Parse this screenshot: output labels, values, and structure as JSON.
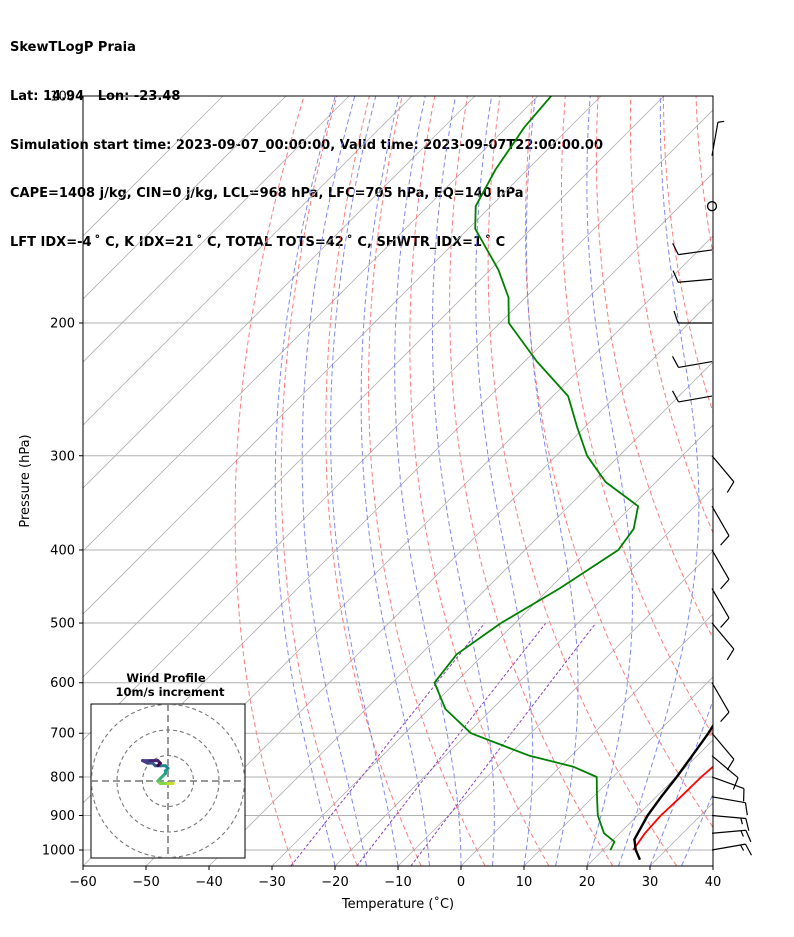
{
  "header": {
    "line1": "SkewTLogP Praia",
    "line2": "Lat: 14.94   Lon: -23.48",
    "line3": "Simulation start time: 2023-09-07_00:00:00, Valid time: 2023-09-07T22:00:00.00",
    "line4": "CAPE=1408 j/kg, CIN=0 j/kg, LCL=968 hPa, LFC=705 hPa, EQ=140 hPa",
    "line5": "LFT IDX=-4 ˚ C, K IDX=21 ˚ C, TOTAL TOTS=42 ˚ C, SHWTR_IDX=1 ˚ C"
  },
  "chart_data": {
    "type": "line",
    "subtype": "skew-t log-p",
    "xlabel": "Temperature (˚C)",
    "ylabel": "Pressure (hPa)",
    "xlim": [
      -60,
      40
    ],
    "ylim": [
      1050,
      100
    ],
    "x_ticks": [
      -60,
      -50,
      -40,
      -30,
      -20,
      -10,
      0,
      10,
      20,
      30,
      40
    ],
    "x_tick_labels": [
      "−60",
      "−50",
      "−40",
      "−30",
      "−20",
      "−10",
      "0",
      "10",
      "20",
      "30",
      "40"
    ],
    "y_ticks": [
      100,
      200,
      300,
      400,
      500,
      600,
      700,
      800,
      900,
      1000
    ],
    "y_scale": "log",
    "grid": true,
    "colors": {
      "temperature": "#ff0000",
      "dewpoint": "#008000",
      "parcel": "#000000",
      "cape_fill": "#f0a0a0",
      "cin_fill": "#9fc4df",
      "dry_adiabat": "#ff6666",
      "moist_adiabat": "#6b74f0",
      "mixing_ratio": "#8b3fbf",
      "isotherm": "#b0b0b0"
    },
    "series": [
      {
        "role": "temperature",
        "points": [
          [
            1000,
            24.8
          ],
          [
            950,
            24.0
          ],
          [
            900,
            23.7
          ],
          [
            850,
            23.9
          ],
          [
            800,
            24.0
          ],
          [
            750,
            24.5
          ],
          [
            700,
            22.0
          ],
          [
            650,
            19.5
          ],
          [
            600,
            16.6
          ],
          [
            550,
            13.5
          ],
          [
            500,
            10.8
          ],
          [
            450,
            7.1
          ],
          [
            400,
            3.6
          ],
          [
            350,
            -0.8
          ],
          [
            325,
            -4.5
          ],
          [
            300,
            -9.3
          ],
          [
            275,
            -14.2
          ],
          [
            250,
            -20.8
          ],
          [
            225,
            -27.3
          ],
          [
            200,
            -34.8
          ],
          [
            175,
            -43.8
          ],
          [
            160,
            -50.8
          ],
          [
            150,
            -56.2
          ],
          [
            140,
            -60.5
          ],
          [
            130,
            -63.4
          ],
          [
            120,
            -68.0
          ],
          [
            110,
            -74.3
          ],
          [
            100,
            -79.9
          ]
        ]
      },
      {
        "role": "dewpoint",
        "points": [
          [
            1000,
            21.2
          ],
          [
            975,
            20.5
          ],
          [
            950,
            17.5
          ],
          [
            900,
            13.7
          ],
          [
            850,
            10.6
          ],
          [
            800,
            7.4
          ],
          [
            775,
            2.0
          ],
          [
            750,
            -6.6
          ],
          [
            700,
            -19.5
          ],
          [
            650,
            -27.4
          ],
          [
            600,
            -33.3
          ],
          [
            550,
            -34.3
          ],
          [
            500,
            -32.2
          ],
          [
            450,
            -28.4
          ],
          [
            400,
            -25.2
          ],
          [
            375,
            -26.1
          ],
          [
            350,
            -29.0
          ],
          [
            325,
            -38.0
          ],
          [
            300,
            -45.1
          ],
          [
            275,
            -51.2
          ],
          [
            250,
            -57.6
          ],
          [
            225,
            -68.0
          ],
          [
            200,
            -78.6
          ],
          [
            185,
            -82.7
          ],
          [
            170,
            -88.7
          ],
          [
            150,
            -98.9
          ],
          [
            140,
            -102.4
          ],
          [
            125,
            -105.1
          ],
          [
            110,
            -107.2
          ],
          [
            100,
            -107.9
          ]
        ]
      },
      {
        "role": "parcel",
        "points": [
          [
            1000,
            25.2
          ],
          [
            968,
            23.3
          ],
          [
            900,
            21.6
          ],
          [
            850,
            20.8
          ],
          [
            800,
            20.1
          ],
          [
            750,
            19.2
          ],
          [
            705,
            18.3
          ],
          [
            650,
            16.8
          ],
          [
            600,
            14.6
          ],
          [
            550,
            11.7
          ],
          [
            500,
            8.2
          ],
          [
            450,
            4.0
          ],
          [
            400,
            -1.1
          ],
          [
            350,
            -7.1
          ],
          [
            300,
            -14.6
          ],
          [
            250,
            -23.4
          ],
          [
            200,
            -33.9
          ],
          [
            175,
            -41.4
          ],
          [
            150,
            -50.5
          ],
          [
            140,
            -55.3
          ],
          [
            120,
            -64.8
          ],
          [
            100,
            -77.0
          ]
        ]
      }
    ],
    "cape_region": {
      "from_hPa": 705,
      "to_hPa": 140
    },
    "wind_barbs": [
      {
        "p": 1000,
        "speed_kt": 15,
        "direction_deg": 80
      },
      {
        "p": 950,
        "speed_kt": 15,
        "direction_deg": 85
      },
      {
        "p": 900,
        "speed_kt": 15,
        "direction_deg": 95
      },
      {
        "p": 850,
        "speed_kt": 10,
        "direction_deg": 100
      },
      {
        "p": 800,
        "speed_kt": 10,
        "direction_deg": 110
      },
      {
        "p": 750,
        "speed_kt": 10,
        "direction_deg": 130
      },
      {
        "p": 700,
        "speed_kt": 10,
        "direction_deg": 140
      },
      {
        "p": 600,
        "speed_kt": 10,
        "direction_deg": 150
      },
      {
        "p": 500,
        "speed_kt": 10,
        "direction_deg": 140
      },
      {
        "p": 450,
        "speed_kt": 10,
        "direction_deg": 150
      },
      {
        "p": 400,
        "speed_kt": 10,
        "direction_deg": 150
      },
      {
        "p": 350,
        "speed_kt": 10,
        "direction_deg": 150
      },
      {
        "p": 300,
        "speed_kt": 10,
        "direction_deg": 140
      },
      {
        "p": 250,
        "speed_kt": 10,
        "direction_deg": 260
      },
      {
        "p": 225,
        "speed_kt": 10,
        "direction_deg": 260
      },
      {
        "p": 200,
        "speed_kt": 10,
        "direction_deg": 270
      },
      {
        "p": 175,
        "speed_kt": 10,
        "direction_deg": 265
      },
      {
        "p": 160,
        "speed_kt": 10,
        "direction_deg": 262
      },
      {
        "p": 140,
        "speed_kt": 0,
        "direction_deg": 0
      },
      {
        "p": 120,
        "speed_kt": 5,
        "direction_deg": 10
      }
    ],
    "hodograph": {
      "title_line1": "Wind Profile",
      "title_line2": "10m/s increment",
      "rings_ms": [
        10,
        20,
        30
      ],
      "points_uv": [
        [
          -1,
          -1
        ],
        [
          0,
          -1
        ],
        [
          1,
          -1
        ],
        [
          2,
          -1
        ],
        [
          -1,
          -1
        ],
        [
          -3,
          -1
        ],
        [
          -4,
          0
        ],
        [
          -3,
          1
        ],
        [
          -2,
          2
        ],
        [
          -1,
          3
        ],
        [
          -1,
          4
        ],
        [
          0,
          5
        ],
        [
          -1,
          6
        ],
        [
          -3,
          6
        ],
        [
          -5,
          6
        ],
        [
          -6,
          7
        ],
        [
          -8,
          7
        ],
        [
          -10,
          8
        ],
        [
          -7,
          8
        ],
        [
          -4,
          8
        ],
        [
          -3,
          7
        ],
        [
          -4,
          6
        ]
      ]
    }
  }
}
